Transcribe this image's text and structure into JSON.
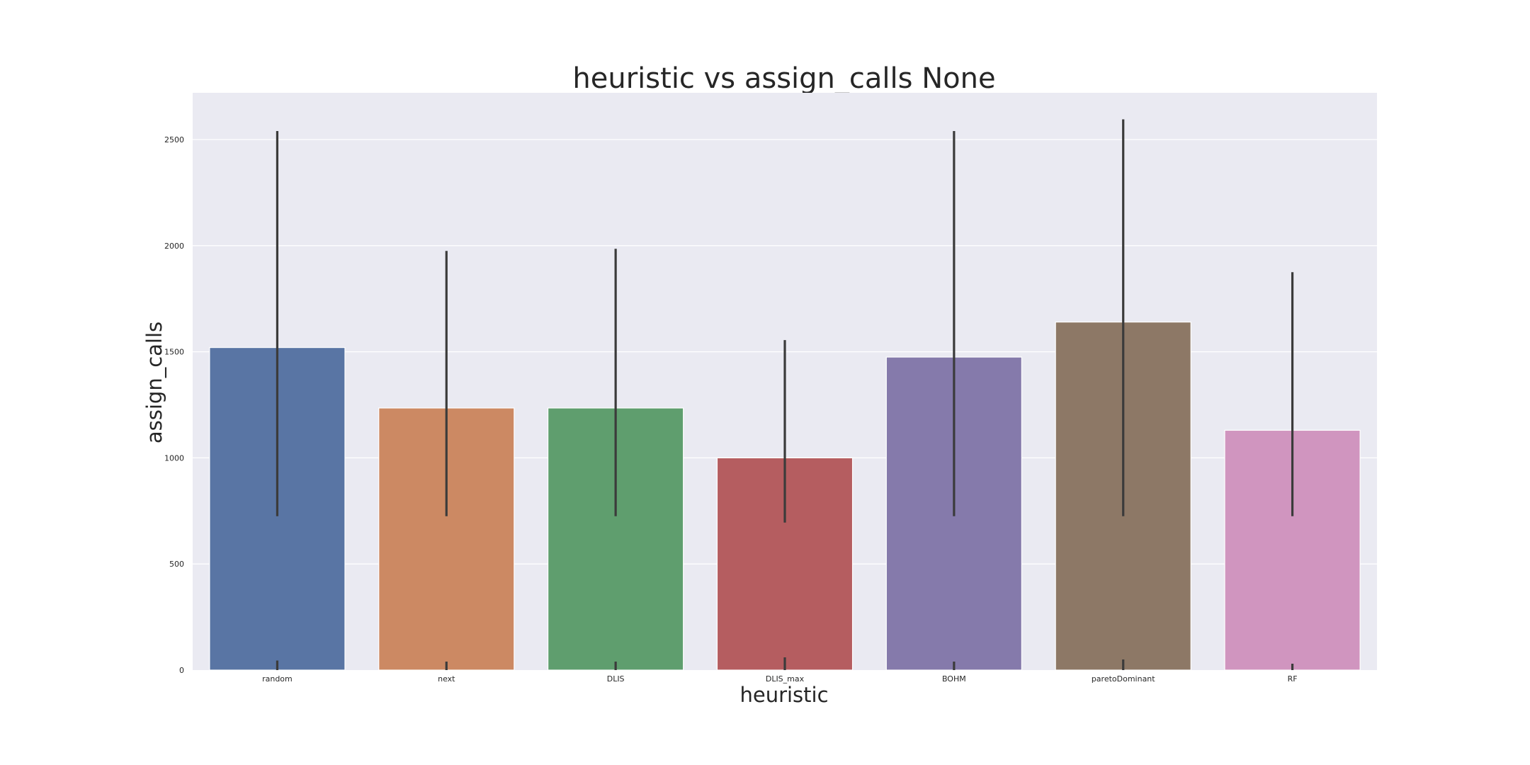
{
  "chart_data": {
    "type": "bar",
    "title": "heuristic vs assign_calls None",
    "xlabel": "heuristic",
    "ylabel": "assign_calls",
    "categories": [
      "random",
      "next",
      "DLIS",
      "DLIS_max",
      "BOHM",
      "paretoDominant",
      "RF"
    ],
    "values": [
      1520,
      1235,
      1235,
      1000,
      1475,
      1640,
      1130
    ],
    "error_low": [
      45,
      40,
      40,
      60,
      40,
      50,
      30
    ],
    "error_high": [
      2540,
      1975,
      1985,
      1555,
      2540,
      2595,
      1875
    ],
    "error_low_secondary": [
      725,
      725,
      725,
      695,
      725,
      725,
      725
    ],
    "colors": [
      "#5975a4",
      "#cc8963",
      "#5f9e6e",
      "#b55d60",
      "#857aab",
      "#8d7866",
      "#d095bf"
    ],
    "ylim": [
      0,
      2720
    ],
    "yticks": [
      0,
      500,
      1000,
      1500,
      2000,
      2500
    ],
    "grid": true,
    "background": "#eaeaf2"
  }
}
